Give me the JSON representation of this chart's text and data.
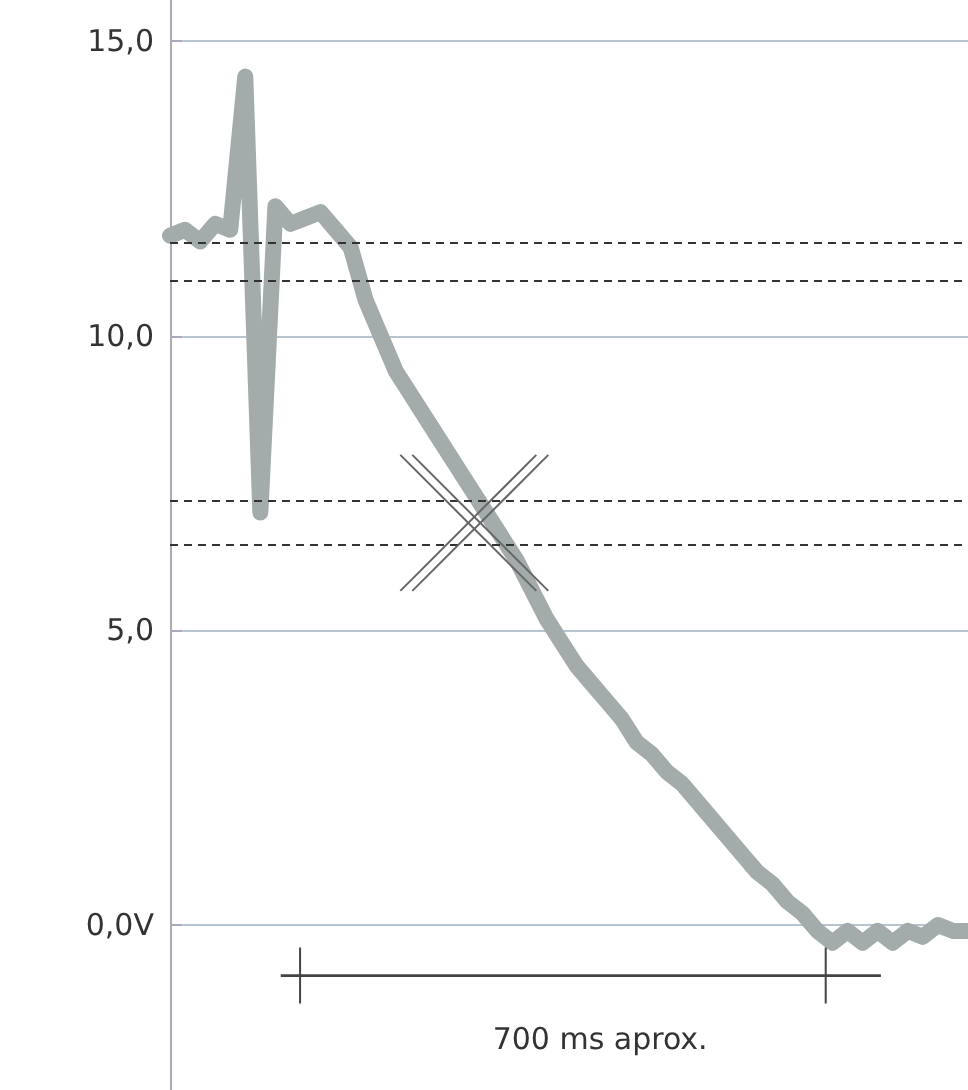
{
  "chart_data": {
    "type": "line",
    "categories": [
      null,
      null,
      null,
      null,
      null,
      null,
      null,
      null,
      null,
      null,
      null,
      null,
      null,
      null,
      null,
      null,
      null,
      null,
      null,
      null,
      null,
      null,
      null,
      null,
      null,
      null,
      null,
      null,
      null,
      null,
      null,
      null,
      null,
      null,
      null,
      null,
      null,
      null,
      null,
      null,
      null,
      null,
      null,
      null,
      null,
      null,
      null,
      null,
      null,
      null,
      null,
      null,
      null,
      null
    ],
    "series": [
      {
        "color": "#a3abab",
        "values": [
          11.7,
          11.8,
          11.6,
          11.9,
          11.8,
          14.4,
          7.0,
          12.2,
          11.9,
          12.0,
          12.1,
          11.8,
          11.5,
          10.6,
          10.0,
          9.4,
          9.0,
          8.6,
          8.2,
          7.8,
          7.4,
          7.0,
          6.6,
          6.2,
          5.7,
          5.2,
          4.8,
          4.4,
          4.1,
          3.8,
          3.5,
          3.1,
          2.9,
          2.6,
          2.4,
          2.1,
          1.8,
          1.5,
          1.2,
          0.9,
          0.7,
          0.4,
          0.2,
          -0.1,
          -0.3,
          -0.1,
          -0.3,
          -0.1,
          -0.3,
          -0.1,
          -0.2,
          0.0,
          -0.1,
          -0.1
        ]
      }
    ],
    "ylim": [
      -2.8,
      15.7
    ],
    "yticks": [
      {
        "value": 0,
        "label": "0,0V"
      },
      {
        "value": 5,
        "label": "5,0"
      },
      {
        "value": 10,
        "label": "10,0"
      },
      {
        "value": 15,
        "label": "15,0"
      }
    ],
    "tick_labels": "y",
    "grid": "y",
    "line_style": "solid",
    "ref_lines": [
      {
        "axis": "y",
        "value": 11.6,
        "label": null,
        "color": "#333333",
        "line_style": "dashed"
      },
      {
        "axis": "y",
        "value": 10.95,
        "label": null,
        "color": "#333333",
        "line_style": "dashed"
      },
      {
        "axis": "y",
        "value": 7.2,
        "label": null,
        "color": "#333333",
        "line_style": "dashed"
      },
      {
        "axis": "y",
        "value": 6.45,
        "label": null,
        "color": "#333333",
        "line_style": "dashed"
      }
    ],
    "annotations": [
      "700 ms aprox."
    ]
  }
}
